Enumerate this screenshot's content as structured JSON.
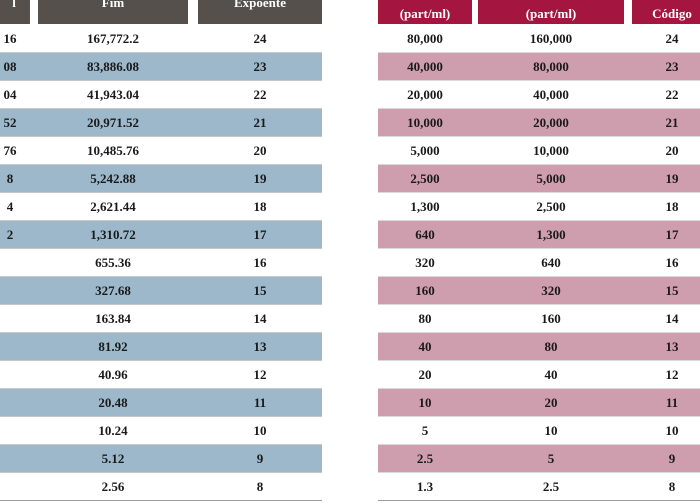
{
  "left_table": {
    "headers": [
      "l",
      "Fim",
      "Expoente"
    ],
    "rows": [
      [
        "16",
        "167,772.2",
        "24"
      ],
      [
        "08",
        "83,886.08",
        "23"
      ],
      [
        "04",
        "41,943.04",
        "22"
      ],
      [
        "52",
        "20,971.52",
        "21"
      ],
      [
        "76",
        "10,485.76",
        "20"
      ],
      [
        "8",
        "5,242.88",
        "19"
      ],
      [
        "4",
        "2,621.44",
        "18"
      ],
      [
        "2",
        "1,310.72",
        "17"
      ],
      [
        "",
        "655.36",
        "16"
      ],
      [
        "",
        "327.68",
        "15"
      ],
      [
        "",
        "163.84",
        "14"
      ],
      [
        "",
        "81.92",
        "13"
      ],
      [
        "",
        "40.96",
        "12"
      ],
      [
        "",
        "20.48",
        "11"
      ],
      [
        "",
        "10.24",
        "10"
      ],
      [
        "",
        "5.12",
        "9"
      ],
      [
        "",
        "2.56",
        "8"
      ]
    ]
  },
  "right_table": {
    "headers": [
      "(part/ml)",
      "(part/ml)",
      "Código"
    ],
    "rows": [
      [
        "80,000",
        "160,000",
        "24"
      ],
      [
        "40,000",
        "80,000",
        "23"
      ],
      [
        "20,000",
        "40,000",
        "22"
      ],
      [
        "10,000",
        "20,000",
        "21"
      ],
      [
        "5,000",
        "10,000",
        "20"
      ],
      [
        "2,500",
        "5,000",
        "19"
      ],
      [
        "1,300",
        "2,500",
        "18"
      ],
      [
        "640",
        "1,300",
        "17"
      ],
      [
        "320",
        "640",
        "16"
      ],
      [
        "160",
        "320",
        "15"
      ],
      [
        "80",
        "160",
        "14"
      ],
      [
        "40",
        "80",
        "13"
      ],
      [
        "20",
        "40",
        "12"
      ],
      [
        "10",
        "20",
        "11"
      ],
      [
        "5",
        "10",
        "10"
      ],
      [
        "2.5",
        "5",
        "9"
      ],
      [
        "1.3",
        "2.5",
        "8"
      ]
    ]
  },
  "colors": {
    "left_header": "#55504c",
    "left_alt_row": "#9db8cb",
    "right_header": "#a4163f",
    "right_alt_row": "#cf9eae"
  }
}
